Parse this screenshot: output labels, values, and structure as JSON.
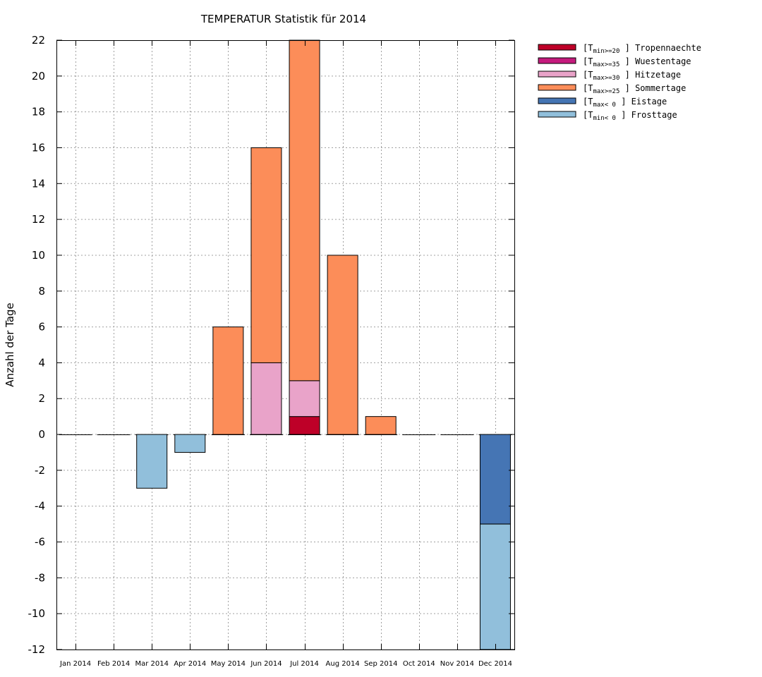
{
  "chart_data": {
    "type": "bar",
    "stacked": true,
    "title": "TEMPERATUR Statistik für 2014",
    "xlabel": "",
    "ylabel": "Anzahl der Tage",
    "ylim": [
      -12,
      22
    ],
    "yticks": [
      22,
      20,
      18,
      16,
      14,
      12,
      10,
      8,
      6,
      4,
      2,
      0,
      -2,
      -4,
      -6,
      -8,
      -10,
      -12
    ],
    "grid": true,
    "legend_position": "right-outside-top",
    "categories": [
      "Jan 2014",
      "Feb 2014",
      "Mar 2014",
      "Apr 2014",
      "May 2014",
      "Jun 2014",
      "Jul 2014",
      "Aug 2014",
      "Sep 2014",
      "Oct 2014",
      "Nov 2014",
      "Dec 2014"
    ],
    "series": [
      {
        "name": "Tropennaechte",
        "label_prefix": "[T",
        "label_sub": "min>=20",
        "label_suffix": " ] Tropennaechte",
        "color": "#be0028",
        "direction": "positive",
        "values": [
          0,
          0,
          0,
          0,
          0,
          0,
          1,
          0,
          0,
          0,
          0,
          0
        ]
      },
      {
        "name": "Wuestentage",
        "label_prefix": "[T",
        "label_sub": "max>=35",
        "label_suffix": " ] Wuestentage",
        "color": "#c51b7d",
        "direction": "positive",
        "values": [
          0,
          0,
          0,
          0,
          0,
          0,
          0,
          0,
          0,
          0,
          0,
          0
        ]
      },
      {
        "name": "Hitzetage",
        "label_prefix": "[T",
        "label_sub": "max>=30",
        "label_suffix": " ] Hitzetage",
        "color": "#e9a3c9",
        "direction": "positive",
        "values": [
          0,
          0,
          0,
          0,
          0,
          4,
          2,
          0,
          0,
          0,
          0,
          0
        ]
      },
      {
        "name": "Sommertage",
        "label_prefix": "[T",
        "label_sub": "max>=25",
        "label_suffix": " ] Sommertage",
        "color": "#fc8d59",
        "direction": "positive",
        "values": [
          0,
          0,
          0,
          0,
          6,
          12,
          19,
          10,
          1,
          0,
          0,
          0
        ]
      },
      {
        "name": "Eistage",
        "label_prefix": "[T",
        "label_sub": "max< 0",
        "label_suffix": " ] Eistage",
        "color": "#4575b4",
        "direction": "negative",
        "values": [
          0,
          0,
          0,
          0,
          0,
          0,
          0,
          0,
          0,
          0,
          0,
          5
        ]
      },
      {
        "name": "Frosttage",
        "label_prefix": "[T",
        "label_sub": "min< 0",
        "label_suffix": " ] Frosttage",
        "color": "#91bfdb",
        "direction": "negative",
        "values": [
          0,
          0,
          3,
          1,
          0,
          0,
          0,
          0,
          0,
          0,
          0,
          7
        ]
      }
    ],
    "notes": "Sommertage totals: May 6, Jun 16, Jul 22, Aug 10, Sep 1 (stack tops). Dec Frosttage bar clipped at -12 axis limit (extends from -5 downward)."
  }
}
